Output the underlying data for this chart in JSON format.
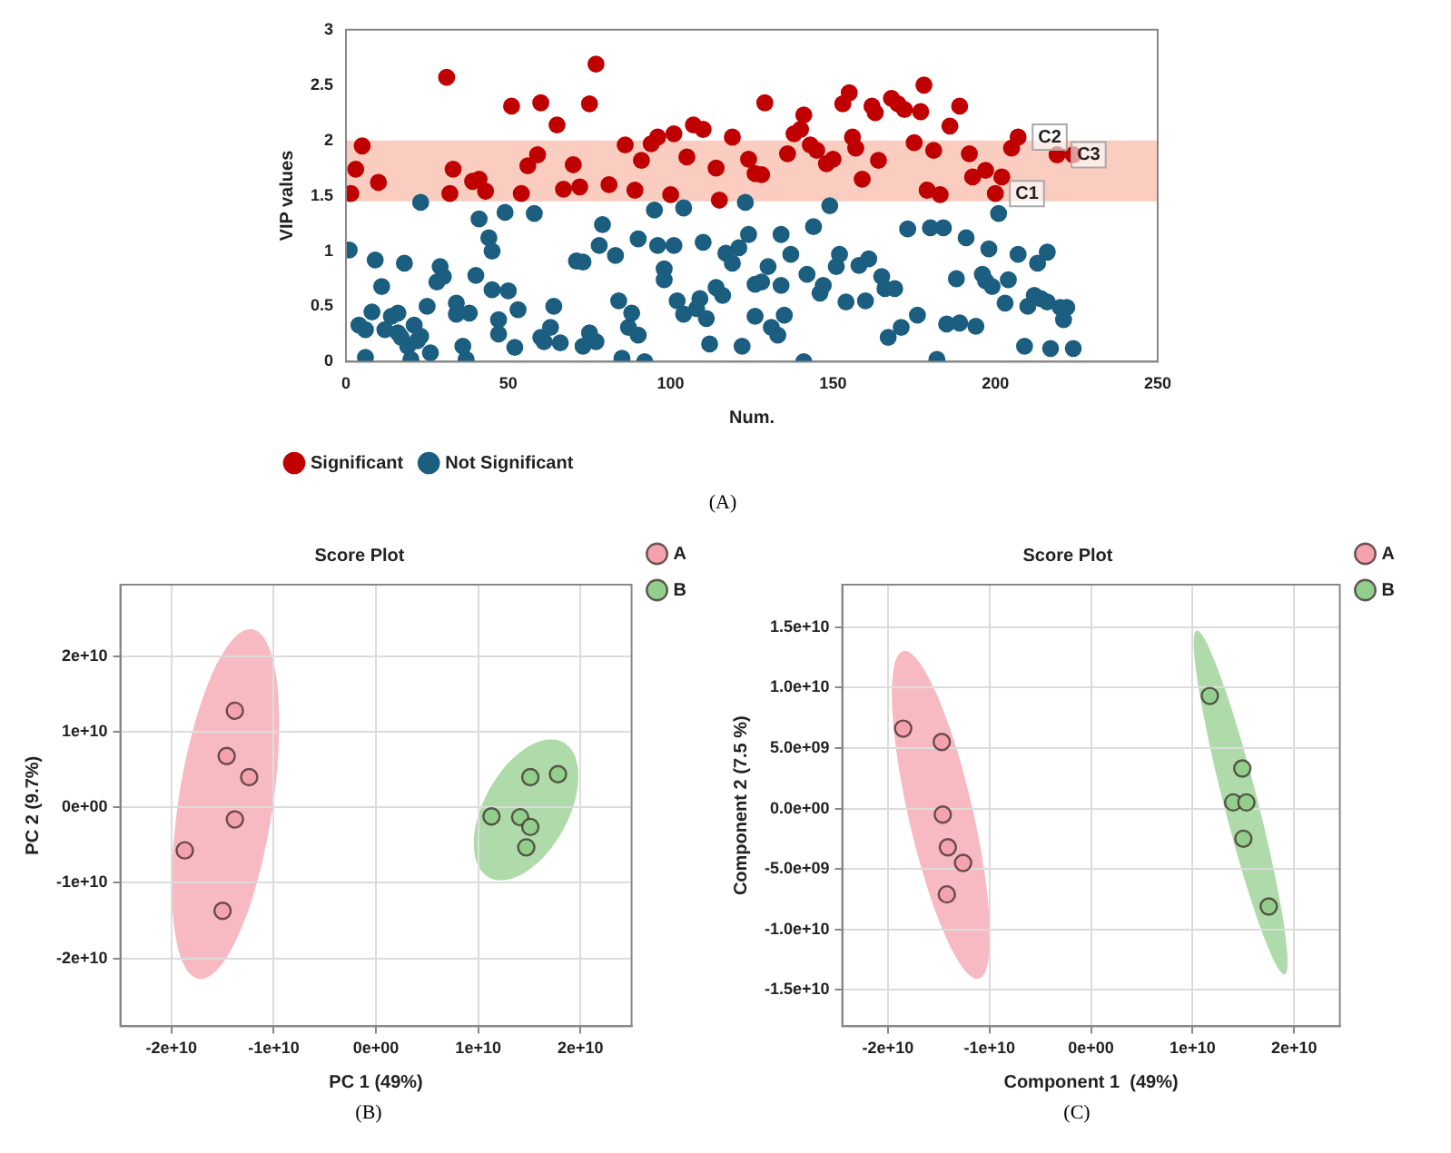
{
  "chart_data": [
    {
      "type": "scatter",
      "xlabel": "Num.",
      "ylabel": "VIP values",
      "xlim": [
        0,
        250
      ],
      "ylim": [
        0,
        3
      ],
      "xticks": [
        0,
        50,
        100,
        150,
        200,
        250
      ],
      "yticks": [
        0,
        0.5,
        1,
        1.5,
        2,
        2.5,
        3
      ],
      "grid": false,
      "legend": "bottom left",
      "marker": "circle",
      "bands": [
        {
          "axis": "y",
          "from": 1.45,
          "to": 2.0,
          "color": "#f6a48c"
        }
      ],
      "annotations": [
        {
          "text": "C1",
          "x": 200,
          "y": 1.52
        },
        {
          "text": "C2",
          "x": 207,
          "y": 2.03
        },
        {
          "text": "C3",
          "x": 219,
          "y": 1.87
        },
        "(A)"
      ],
      "series": [
        {
          "name": "Significant",
          "color": "#c00000",
          "x": [
            1.5,
            3,
            5,
            10,
            31,
            33,
            32,
            39,
            41,
            43,
            51,
            54,
            56,
            59,
            60,
            65,
            67,
            70,
            72,
            75,
            77,
            81,
            86,
            89,
            91,
            94,
            96,
            100,
            101,
            105,
            107,
            110,
            114,
            119,
            115,
            124,
            126,
            129,
            128,
            136,
            141,
            140,
            138,
            143,
            145,
            148,
            150,
            153,
            155,
            156,
            157,
            159,
            162,
            163,
            164,
            168,
            170,
            172,
            175,
            177,
            178,
            181,
            179,
            183,
            186,
            189,
            192,
            193,
            197,
            202,
            200,
            205,
            207,
            219,
            224
          ],
          "values": [
            1.52,
            1.74,
            1.95,
            1.62,
            2.57,
            1.74,
            1.52,
            1.63,
            1.65,
            1.54,
            2.31,
            1.52,
            1.77,
            1.87,
            2.34,
            2.14,
            1.56,
            1.78,
            1.58,
            2.33,
            2.69,
            1.6,
            1.96,
            1.55,
            1.82,
            1.97,
            2.03,
            1.51,
            2.06,
            1.85,
            2.14,
            2.1,
            1.75,
            2.03,
            1.46,
            1.83,
            1.7,
            2.34,
            1.69,
            1.88,
            2.23,
            2.1,
            2.06,
            1.96,
            1.91,
            1.79,
            1.83,
            2.33,
            2.43,
            2.03,
            1.93,
            1.65,
            2.31,
            2.25,
            1.82,
            2.38,
            2.33,
            2.28,
            1.98,
            2.26,
            2.5,
            1.91,
            1.55,
            1.51,
            2.13,
            2.31,
            1.88,
            1.67,
            1.73,
            1.67,
            1.52,
            1.93,
            2.03,
            1.87,
            1.87
          ]
        },
        {
          "name": "Not Significant",
          "color": "#1b5e80",
          "x": [
            1,
            4,
            6,
            6,
            8,
            9,
            11,
            12,
            14,
            16,
            16,
            18,
            17,
            19,
            20,
            21,
            22,
            23,
            23,
            25,
            26,
            28,
            29,
            30,
            34,
            34,
            36,
            37,
            38,
            40,
            41,
            44,
            45,
            45,
            47,
            47,
            49,
            50,
            52,
            53,
            58,
            60,
            61,
            63,
            64,
            66,
            71,
            73,
            73,
            75,
            77,
            78,
            79,
            83,
            84,
            85,
            87,
            88,
            90,
            90,
            92,
            95,
            96,
            98,
            98,
            101,
            102,
            104,
            104,
            108,
            109,
            110,
            111,
            112,
            114,
            116,
            117,
            119,
            121,
            122,
            123,
            124,
            126,
            126,
            128,
            130,
            134,
            134,
            135,
            137,
            131,
            133,
            141,
            142,
            144,
            146,
            147,
            149,
            152,
            151,
            154,
            158,
            161,
            160,
            165,
            166,
            169,
            167,
            171,
            173,
            176,
            180,
            184,
            182,
            185,
            189,
            191,
            194,
            188,
            196,
            197,
            199,
            198,
            201,
            203,
            204,
            207,
            209,
            210,
            212,
            213,
            214,
            216,
            217,
            216,
            220,
            222,
            221,
            224
          ],
          "values": [
            1.01,
            0.33,
            0.29,
            0.04,
            0.45,
            0.92,
            0.68,
            0.29,
            0.41,
            0.44,
            0.26,
            0.89,
            0.22,
            0.14,
            0.02,
            0.33,
            0.19,
            0.23,
            1.44,
            0.5,
            0.08,
            0.72,
            0.86,
            0.77,
            0.53,
            0.43,
            0.14,
            0.02,
            0.44,
            0.78,
            1.29,
            1.12,
            1.0,
            0.65,
            0.38,
            0.25,
            1.35,
            0.64,
            0.13,
            0.47,
            1.34,
            0.22,
            0.18,
            0.31,
            0.5,
            0.17,
            0.91,
            0.9,
            0.14,
            0.26,
            0.18,
            1.05,
            1.24,
            0.96,
            0.55,
            0.03,
            0.31,
            0.44,
            0.24,
            1.11,
            0.0,
            1.37,
            1.05,
            0.84,
            0.74,
            1.05,
            0.55,
            0.43,
            1.39,
            0.48,
            0.57,
            1.08,
            0.39,
            0.16,
            0.67,
            0.6,
            0.98,
            0.89,
            1.03,
            0.14,
            1.44,
            1.15,
            0.7,
            0.41,
            0.72,
            0.86,
            1.15,
            0.69,
            0.42,
            0.97,
            0.31,
            0.24,
            0.0,
            0.79,
            1.22,
            0.62,
            0.69,
            1.41,
            0.97,
            0.86,
            0.54,
            0.87,
            0.93,
            0.55,
            0.77,
            0.66,
            0.66,
            0.22,
            0.31,
            1.2,
            0.42,
            1.21,
            1.21,
            0.02,
            0.34,
            0.35,
            1.12,
            0.32,
            0.75,
            0.79,
            0.73,
            0.68,
            1.02,
            1.34,
            0.53,
            0.74,
            0.97,
            0.14,
            0.5,
            0.6,
            0.89,
            0.57,
            0.99,
            0.12,
            0.54,
            0.49,
            0.49,
            0.38,
            0.12
          ]
        }
      ]
    },
    {
      "type": "scatter",
      "title": "Score Plot",
      "xlabel": "PC 1 (49%)",
      "ylabel": "PC 2 (9.7%)",
      "xlim": [
        -25000000000.0,
        25000000000.0
      ],
      "ylim": [
        -29000000000.0,
        29500000000.0
      ],
      "xticks": [
        {
          "value": -20000000000.0,
          "label": "-2e+10"
        },
        {
          "value": -10000000000.0,
          "label": "-1e+10"
        },
        {
          "value": 0,
          "label": "0e+00"
        },
        {
          "value": 10000000000.0,
          "label": "1e+10"
        },
        {
          "value": 20000000000.0,
          "label": "2e+10"
        }
      ],
      "yticks": [
        {
          "value": -20000000000.0,
          "label": "-2e+10"
        },
        {
          "value": -10000000000.0,
          "label": "-1e+10"
        },
        {
          "value": 0,
          "label": "0e+00"
        },
        {
          "value": 10000000000.0,
          "label": "1e+10"
        },
        {
          "value": 20000000000.0,
          "label": "2e+10"
        }
      ],
      "grid": true,
      "legend": "top right",
      "marker": "circle",
      "annotations": [
        "(B)"
      ],
      "series": [
        {
          "name": "A",
          "color": "#f4a3ae",
          "x": [
            -13800000000.0,
            -14600000000.0,
            -12400000000.0,
            -13800000000.0,
            -18700000000.0,
            -15000000000.0
          ],
          "values": [
            12800000000.0,
            6800000000.0,
            4000000000.0,
            -1600000000.0,
            -5700000000.0,
            -13700000000.0
          ]
        },
        {
          "name": "B",
          "color": "#93cf8c",
          "x": [
            11300000000.0,
            15100000000.0,
            17800000000.0,
            14100000000.0,
            15100000000.0,
            14700000000.0
          ],
          "values": [
            -1200000000.0,
            4000000000.0,
            4400000000.0,
            -1300000000.0,
            -2600000000.0,
            -5300000000.0
          ]
        }
      ]
    },
    {
      "type": "scatter",
      "title": "Score Plot",
      "xlabel": "Component 1  (49%)",
      "ylabel": "Component 2 (7.5 %)",
      "xlim": [
        -24500000000.0,
        24500000000.0
      ],
      "ylim": [
        -18000000000.0,
        18500000000.0
      ],
      "xticks": [
        {
          "value": -20000000000.0,
          "label": "-2e+10"
        },
        {
          "value": -10000000000.0,
          "label": "-1e+10"
        },
        {
          "value": 0,
          "label": "0e+00"
        },
        {
          "value": 10000000000.0,
          "label": "1e+10"
        },
        {
          "value": 20000000000.0,
          "label": "2e+10"
        }
      ],
      "yticks": [
        {
          "value": -15000000000.0,
          "label": "-1.5e+10"
        },
        {
          "value": -10000000000.0,
          "label": "-1.0e+10"
        },
        {
          "value": -5000000000.0,
          "label": "-5.0e+09"
        },
        {
          "value": 0,
          "label": "0.0e+00"
        },
        {
          "value": 5000000000.0,
          "label": "5.0e+09"
        },
        {
          "value": 10000000000.0,
          "label": "1.0e+10"
        },
        {
          "value": 15000000000.0,
          "label": "1.5e+10"
        }
      ],
      "grid": true,
      "legend": "top right",
      "marker": "circle",
      "annotations": [
        "(C)"
      ],
      "series": [
        {
          "name": "A",
          "color": "#f4a3ae",
          "x": [
            -18500000000.0,
            -14700000000.0,
            -14600000000.0,
            -14100000000.0,
            -12600000000.0,
            -14200000000.0
          ],
          "values": [
            6600000000.0,
            5500000000.0,
            -500000000.0,
            -3200000000.0,
            -4500000000.0,
            -7100000000.0
          ]
        },
        {
          "name": "B",
          "color": "#93cf8c",
          "x": [
            11700000000.0,
            14900000000.0,
            14000000000.0,
            15300000000.0,
            15000000000.0,
            17500000000.0
          ],
          "values": [
            9300000000.0,
            3300000000.0,
            500000000.0,
            500000000.0,
            -2500000000.0,
            -8100000000.0
          ]
        }
      ]
    }
  ]
}
